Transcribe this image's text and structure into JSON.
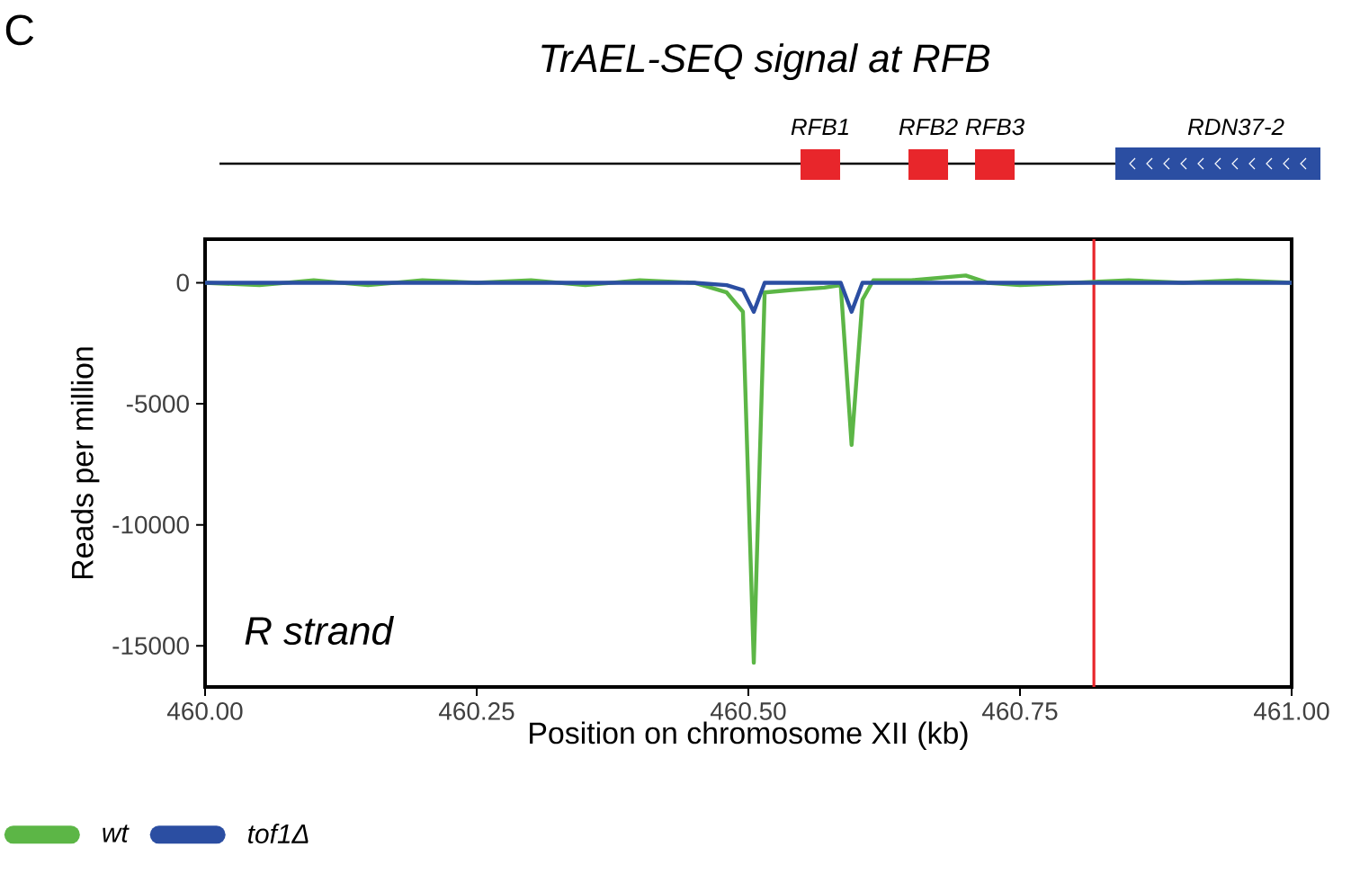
{
  "chart_data": {
    "type": "line",
    "title": "TrAEL-SEQ signal at RFB",
    "xlabel": "Position on chromosome XII (kb)",
    "ylabel": "Reads per million",
    "annotations": [
      "C",
      "R strand",
      "RFB1",
      "RFB2",
      "RFB3",
      "RDN37-2"
    ],
    "x": [
      460.0,
      460.05,
      460.1,
      460.15,
      460.2,
      460.25,
      460.3,
      460.35,
      460.4,
      460.45,
      460.48,
      460.495,
      460.505,
      460.515,
      460.54,
      460.57,
      460.585,
      460.595,
      460.605,
      460.615,
      460.65,
      460.7,
      460.72,
      460.75,
      460.8,
      460.85,
      460.9,
      460.95,
      461.0
    ],
    "series": [
      {
        "name": "wt",
        "color": "#5cb646",
        "values": [
          0,
          -100,
          100,
          -100,
          100,
          0,
          100,
          -100,
          100,
          0,
          -400,
          -1200,
          -15700,
          -400,
          -300,
          -200,
          -100,
          -6700,
          -700,
          100,
          100,
          300,
          0,
          -100,
          0,
          100,
          0,
          100,
          0
        ]
      },
      {
        "name": "tof1Δ",
        "color": "#2b4ea2",
        "values": [
          0,
          0,
          0,
          0,
          0,
          0,
          0,
          0,
          0,
          0,
          -100,
          -300,
          -1200,
          0,
          0,
          0,
          0,
          -1200,
          0,
          0,
          0,
          0,
          0,
          0,
          0,
          0,
          0,
          0,
          0
        ]
      }
    ],
    "xlim": [
      460.0,
      461.0
    ],
    "ylim": [
      -16700,
      1800
    ],
    "xticks": [
      {
        "value": 460.0,
        "label": "460.00"
      },
      {
        "value": 460.25,
        "label": "460.25"
      },
      {
        "value": 460.5,
        "label": "460.50"
      },
      {
        "value": 460.75,
        "label": "460.75"
      },
      {
        "value": 461.0,
        "label": "461.00"
      }
    ],
    "yticks": [
      0,
      -5000,
      -10000,
      -15000
    ],
    "ref_lines": [
      {
        "axis": "x",
        "value": 460.818,
        "color": "#e8262b"
      }
    ],
    "grid": false,
    "legend": "bottom left",
    "marker": "none",
    "line_style": "solid"
  }
}
